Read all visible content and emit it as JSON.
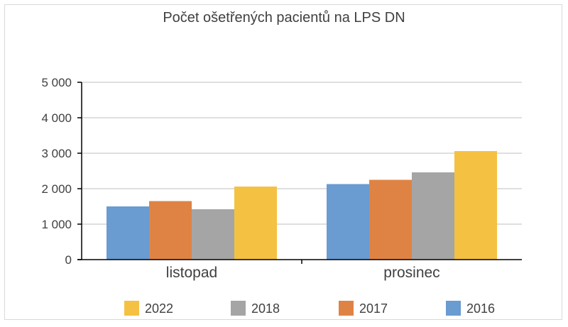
{
  "chart_data": {
    "type": "bar",
    "title": "Počet ošetřených pacientů na LPS DN",
    "categories": [
      "listopad",
      "prosinec"
    ],
    "series": [
      {
        "name": "2016",
        "color": "#6a9bd1",
        "values": [
          1500,
          2130
        ]
      },
      {
        "name": "2017",
        "color": "#df8344",
        "values": [
          1650,
          2250
        ]
      },
      {
        "name": "2018",
        "color": "#a5a5a5",
        "values": [
          1420,
          2460
        ]
      },
      {
        "name": "2022",
        "color": "#f4c142",
        "values": [
          2060,
          3060
        ]
      }
    ],
    "legend_order": [
      "2022",
      "2018",
      "2017",
      "2016"
    ],
    "ylim": [
      0,
      5000
    ],
    "yticks": [
      {
        "value": 0,
        "label": "0"
      },
      {
        "value": 1000,
        "label": "1 000"
      },
      {
        "value": 2000,
        "label": "2 000"
      },
      {
        "value": 3000,
        "label": "3 000"
      },
      {
        "value": 4000,
        "label": "4 000"
      },
      {
        "value": 5000,
        "label": "5 000"
      }
    ],
    "grid": true,
    "legend_position": "bottom"
  }
}
